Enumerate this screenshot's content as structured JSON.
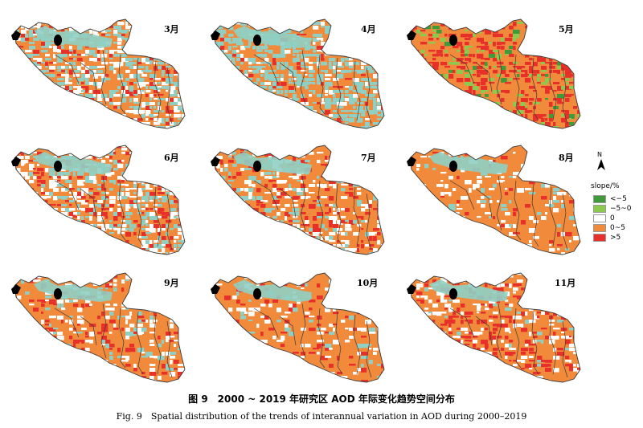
{
  "panels": [
    {
      "month": "3月",
      "scheme": [
        0.3,
        0.25,
        0.35,
        0.1
      ]
    },
    {
      "month": "4月",
      "scheme": [
        0.45,
        0.1,
        0.38,
        0.07
      ]
    },
    {
      "month": "5月",
      "scheme": [
        0.05,
        0.12,
        0.52,
        0.31
      ]
    },
    {
      "month": "6月",
      "scheme": [
        0.2,
        0.25,
        0.4,
        0.15
      ]
    },
    {
      "month": "7月",
      "scheme": [
        0.12,
        0.18,
        0.55,
        0.15
      ]
    },
    {
      "month": "8月",
      "scheme": [
        0.04,
        0.12,
        0.8,
        0.04
      ]
    },
    {
      "month": "9月",
      "scheme": [
        0.06,
        0.14,
        0.7,
        0.1
      ]
    },
    {
      "month": "10月",
      "scheme": [
        0.04,
        0.1,
        0.76,
        0.1
      ]
    },
    {
      "month": "11月",
      "scheme": [
        0.03,
        0.16,
        0.6,
        0.21
      ]
    }
  ],
  "legend": {
    "north": "N",
    "title": "slope/%",
    "items": [
      {
        "label": "<−5",
        "color": "#3f9a3a"
      },
      {
        "label": "−5~0",
        "color": "#8cc94e"
      },
      {
        "label": "0",
        "color": "#ffffff"
      },
      {
        "label": "0~5",
        "color": "#f28a3c"
      },
      {
        "label": ">5",
        "color": "#e8302a"
      }
    ]
  },
  "caption": {
    "cn": "图 9　2000 ~ 2019 年研究区 AOD 年际变化趋势空间分布",
    "en": "Fig. 9　Spatial distribution of the trends of interannual variation in AOD during 2000–2019"
  },
  "colors": {
    "teal": "#8fcfc4",
    "orange": "#f28a3c",
    "red": "#e8302a",
    "green_dark": "#3f9a3a",
    "green_light": "#8cc94e",
    "white": "#ffffff",
    "boundary": "#3a3a3a"
  }
}
